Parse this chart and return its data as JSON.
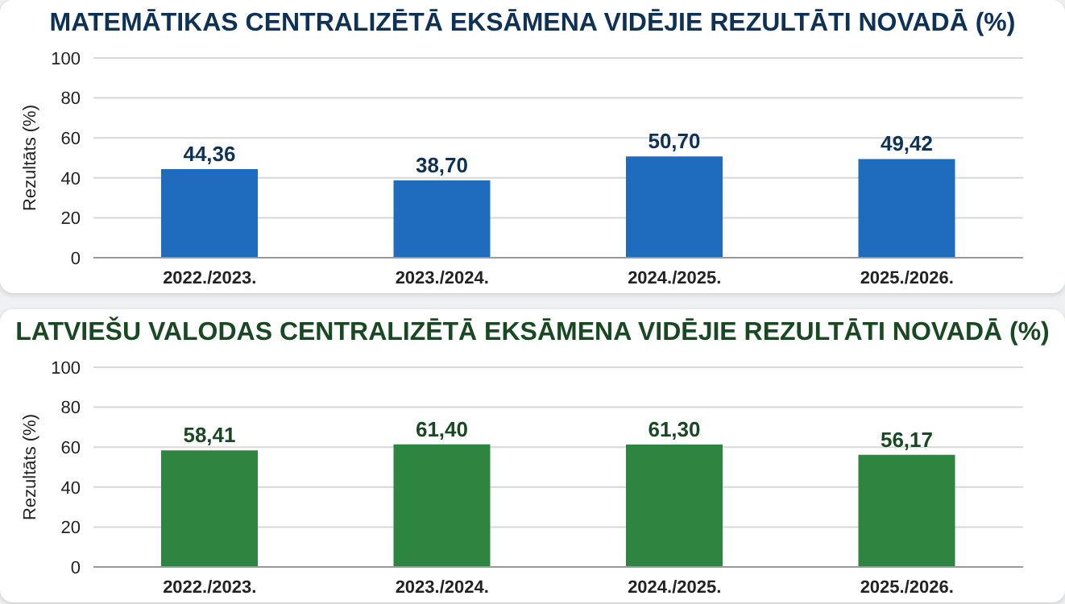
{
  "chart_data": [
    {
      "type": "bar",
      "title": "MATEMĀTIKAS CENTRALIZĒTĀ EKSĀMENA VIDĒJIE REZULTĀTI NOVADĀ (%)",
      "ylabel": "Rezultāts (%)",
      "categories": [
        "2022./2023.",
        "2023./2024.",
        "2024./2025.",
        "2025./2026."
      ],
      "values": [
        44.36,
        38.7,
        50.7,
        49.42
      ],
      "value_labels": [
        "44,36",
        "38,70",
        "50,70",
        "49,42"
      ],
      "color": "#1f6cbf",
      "ylim": [
        0,
        100
      ],
      "yticks": [
        0,
        20,
        40,
        60,
        80,
        100
      ],
      "grid": "y",
      "legend": false
    },
    {
      "type": "bar",
      "title": "LATVIEŠU VALODAS CENTRALIZĒTĀ EKSĀMENA VIDĒJIE REZULTĀTI NOVADĀ (%)",
      "ylabel": "Rezultāts (%)",
      "categories": [
        "2022./2023.",
        "2023./2024.",
        "2024./2025.",
        "2025./2026."
      ],
      "values": [
        58.41,
        61.4,
        61.3,
        56.17
      ],
      "value_labels": [
        "58,41",
        "61,40",
        "61,30",
        "56,17"
      ],
      "color": "#2e8540",
      "ylim": [
        0,
        100
      ],
      "yticks": [
        0,
        20,
        40,
        60,
        80,
        100
      ],
      "grid": "y",
      "legend": false
    }
  ]
}
